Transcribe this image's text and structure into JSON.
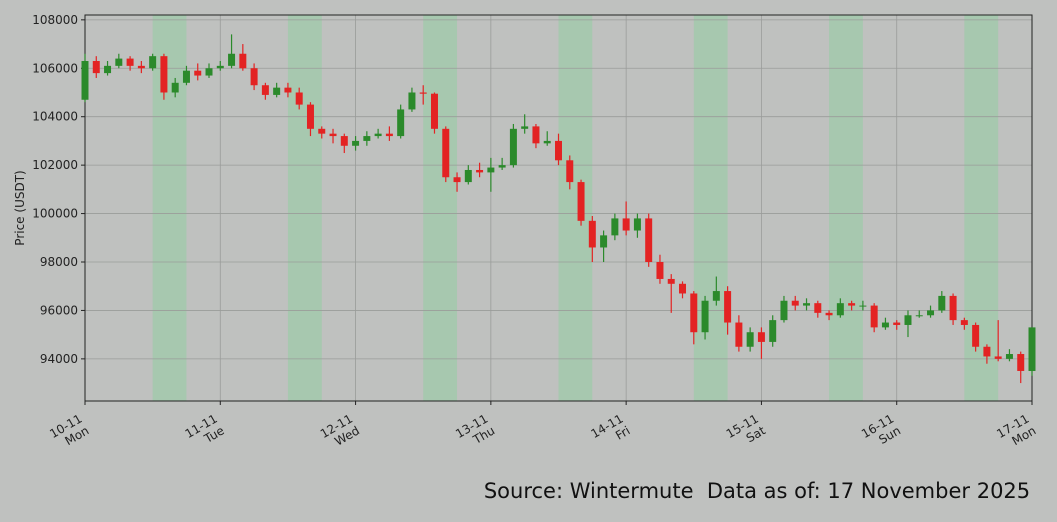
{
  "chart_data": {
    "type": "candlestick",
    "ylabel": "Price (USDT)",
    "source": "Source: Wintermute  Data as of: 17 November 2025",
    "categories": [
      "10-11\nMon",
      null,
      null,
      null,
      null,
      null,
      null,
      null,
      null,
      null,
      null,
      null,
      "11-11\nTue",
      null,
      null,
      null,
      null,
      null,
      null,
      null,
      null,
      null,
      null,
      null,
      "12-11\nWed",
      null,
      null,
      null,
      null,
      null,
      null,
      null,
      null,
      null,
      null,
      null,
      "13-11\nThu",
      null,
      null,
      null,
      null,
      null,
      null,
      null,
      null,
      null,
      null,
      null,
      "14-11\nFri",
      null,
      null,
      null,
      null,
      null,
      null,
      null,
      null,
      null,
      null,
      null,
      "15-11\nSat",
      null,
      null,
      null,
      null,
      null,
      null,
      null,
      null,
      null,
      null,
      null,
      "16-11\nSun",
      null,
      null,
      null,
      null,
      null,
      null,
      null,
      null,
      null,
      null,
      null,
      "17-11\nMon"
    ],
    "open": [
      104700,
      106300,
      105800,
      106100,
      106400,
      106100,
      106000,
      106500,
      105000,
      105400,
      105900,
      105700,
      106000,
      106100,
      106600,
      106000,
      105300,
      104900,
      105200,
      105000,
      104500,
      103500,
      103300,
      103200,
      102800,
      103000,
      103200,
      103300,
      103200,
      104300,
      105000,
      104950,
      103500,
      101500,
      101300,
      101800,
      101700,
      101900,
      102000,
      103500,
      103600,
      102900,
      103000,
      102200,
      101300,
      99700,
      98600,
      99100,
      99800,
      99300,
      99800,
      98000,
      97300,
      97100,
      96700,
      95100,
      96400,
      96800,
      95500,
      94500,
      95100,
      94700,
      95600,
      96400,
      96200,
      96300,
      95900,
      95800,
      96300,
      96200,
      96200,
      95300,
      95500,
      95400,
      95800,
      95800,
      96000,
      96600,
      95600,
      95400,
      94500,
      94100,
      94000,
      94200,
      93500
    ],
    "high": [
      106600,
      106500,
      106300,
      106600,
      106500,
      106300,
      106600,
      106600,
      105600,
      106100,
      106200,
      106200,
      106300,
      107400,
      107000,
      106200,
      105400,
      105400,
      105400,
      105200,
      104600,
      103600,
      103500,
      103300,
      103200,
      103400,
      103500,
      103600,
      104500,
      105200,
      105300,
      105000,
      103600,
      101700,
      102000,
      102100,
      102300,
      102300,
      103700,
      104100,
      103700,
      103400,
      103300,
      102400,
      101400,
      99900,
      99300,
      100000,
      100500,
      100000,
      100000,
      98300,
      97500,
      97200,
      96800,
      96600,
      97400,
      97000,
      95800,
      95300,
      95300,
      95800,
      96600,
      96600,
      96500,
      96400,
      96000,
      96500,
      96400,
      96400,
      96300,
      95700,
      95600,
      96000,
      96000,
      96200,
      96800,
      96700,
      95700,
      95500,
      94600,
      95600,
      94400,
      94300,
      95300
    ],
    "low": [
      104600,
      105600,
      105700,
      106000,
      105900,
      105800,
      105900,
      104700,
      104800,
      105300,
      105500,
      105600,
      105900,
      106000,
      105900,
      105100,
      104700,
      104800,
      104800,
      104300,
      103200,
      103100,
      102900,
      102500,
      102600,
      102800,
      103100,
      103000,
      103100,
      104200,
      104500,
      103300,
      101300,
      100900,
      101200,
      101500,
      100900,
      101800,
      101900,
      103300,
      102700,
      102800,
      102000,
      101000,
      99500,
      98000,
      98000,
      98900,
      99100,
      99000,
      97800,
      97100,
      95900,
      96500,
      94600,
      94800,
      96200,
      95000,
      94300,
      94300,
      94000,
      94500,
      95500,
      96000,
      96000,
      95700,
      95600,
      95700,
      96000,
      96000,
      95100,
      95200,
      95200,
      94900,
      95700,
      95700,
      95900,
      95400,
      95200,
      94300,
      93800,
      93900,
      93900,
      93000,
      93300
    ],
    "close": [
      106300,
      105800,
      106100,
      106400,
      106100,
      106000,
      106500,
      105000,
      105400,
      105900,
      105700,
      106000,
      106100,
      106600,
      106000,
      105300,
      104900,
      105200,
      105000,
      104500,
      103500,
      103300,
      103200,
      102800,
      103000,
      103200,
      103300,
      103200,
      104300,
      105000,
      104950,
      103500,
      101500,
      101300,
      101800,
      101700,
      101900,
      102000,
      103500,
      103600,
      102900,
      103000,
      102200,
      101300,
      99700,
      98600,
      99100,
      99800,
      99300,
      99800,
      98000,
      97300,
      97100,
      96700,
      95100,
      96400,
      96800,
      95500,
      94500,
      95100,
      94700,
      95600,
      96400,
      96200,
      96300,
      95900,
      95800,
      96300,
      96200,
      96200,
      95300,
      95500,
      95400,
      95800,
      95800,
      96000,
      96600,
      95600,
      95400,
      94500,
      94100,
      94000,
      94200,
      93500,
      95300
    ],
    "up_color": "#2b8a2b",
    "down_color": "#e32323",
    "ylim": [
      92260,
      108200
    ],
    "yticks": [
      94000,
      96000,
      98000,
      100000,
      102000,
      104000,
      106000,
      108000
    ],
    "grid": true
  }
}
